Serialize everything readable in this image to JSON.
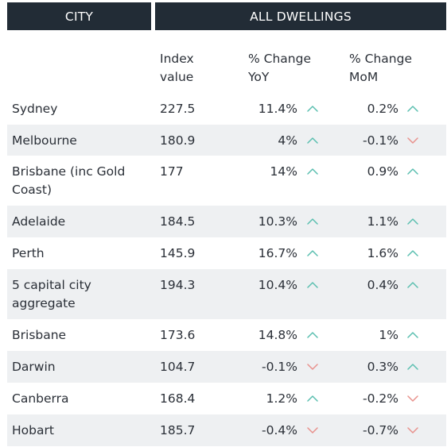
{
  "header": {
    "city": "CITY",
    "all_dwellings": "ALL DWELLINGS"
  },
  "columns": {
    "index": "Index\nvalue",
    "yoy": "% Change\nYoY",
    "mom": "% Change\nMoM"
  },
  "colors": {
    "header_bg": "#222c36",
    "row_shade": "#eef0f2",
    "up": "#5bbfb0",
    "down": "#e8918c"
  },
  "rows": [
    {
      "city": "Sydney",
      "index": "227.5",
      "yoy": "11.4%",
      "yoy_dir": "up",
      "mom": "0.2%",
      "mom_dir": "up"
    },
    {
      "city": "Melbourne",
      "index": "180.9",
      "yoy": "4%",
      "yoy_dir": "up",
      "mom": "-0.1%",
      "mom_dir": "down"
    },
    {
      "city": "Brisbane (inc Gold Coast)",
      "index": "177",
      "yoy": "14%",
      "yoy_dir": "up",
      "mom": "0.9%",
      "mom_dir": "up"
    },
    {
      "city": "Adelaide",
      "index": "184.5",
      "yoy": "10.3%",
      "yoy_dir": "up",
      "mom": "1.1%",
      "mom_dir": "up"
    },
    {
      "city": "Perth",
      "index": "145.9",
      "yoy": "16.7%",
      "yoy_dir": "up",
      "mom": "1.6%",
      "mom_dir": "up"
    },
    {
      "city": "5 capital city aggregate",
      "index": "194.3",
      "yoy": "10.4%",
      "yoy_dir": "up",
      "mom": "0.4%",
      "mom_dir": "up"
    },
    {
      "city": "Brisbane",
      "index": "173.6",
      "yoy": "14.8%",
      "yoy_dir": "up",
      "mom": "1%",
      "mom_dir": "up"
    },
    {
      "city": "Darwin",
      "index": "104.7",
      "yoy": "-0.1%",
      "yoy_dir": "down",
      "mom": "0.3%",
      "mom_dir": "up"
    },
    {
      "city": "Canberra",
      "index": "168.4",
      "yoy": "1.2%",
      "yoy_dir": "up",
      "mom": "-0.2%",
      "mom_dir": "down"
    },
    {
      "city": "Hobart",
      "index": "185.7",
      "yoy": "-0.4%",
      "yoy_dir": "down",
      "mom": "-0.7%",
      "mom_dir": "down"
    }
  ]
}
